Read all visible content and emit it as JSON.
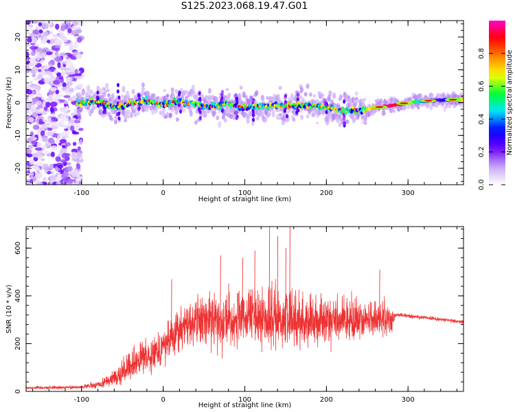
{
  "title": "S125.2023.068.19.47.G01",
  "colors": {
    "snr_line": "#ee3333",
    "axis": "#000000"
  },
  "chart_data": [
    {
      "type": "heatmap",
      "xlabel": "Height of straight line (km)",
      "ylabel": "Frequency (Hz)",
      "xlim": [
        -168,
        368
      ],
      "ylim": [
        -25,
        25
      ],
      "x_ticks": [
        -100,
        0,
        100,
        200,
        300
      ],
      "y_ticks": [
        -20,
        -10,
        0,
        10,
        20
      ],
      "colorbar": {
        "label": "Normalized spectral amplitude",
        "range": [
          0.0,
          1.0
        ],
        "ticks": [
          0.0,
          0.2,
          0.4,
          0.6,
          0.8
        ],
        "tick_labels": [
          "0.0",
          "0.2",
          "0.4",
          "0.6",
          "0.8"
        ],
        "colormap": [
          "#ffffff",
          "#c7a6f7",
          "#6d00ff",
          "#0000ff",
          "#00e5ff",
          "#00ff33",
          "#ffff00",
          "#ff8800",
          "#ff0000",
          "#ff00cc"
        ]
      },
      "ridge_frequency_trace": [
        {
          "x": -105,
          "y": 0.0
        },
        {
          "x": -80,
          "y": 0.5
        },
        {
          "x": -60,
          "y": -1.5
        },
        {
          "x": -40,
          "y": -0.5
        },
        {
          "x": -20,
          "y": 0.5
        },
        {
          "x": 0,
          "y": -0.5
        },
        {
          "x": 20,
          "y": 0.5
        },
        {
          "x": 40,
          "y": -0.5
        },
        {
          "x": 60,
          "y": -1.0
        },
        {
          "x": 80,
          "y": -0.5
        },
        {
          "x": 100,
          "y": -1.5
        },
        {
          "x": 120,
          "y": -1.0
        },
        {
          "x": 140,
          "y": -1.0
        },
        {
          "x": 160,
          "y": -1.0
        },
        {
          "x": 180,
          "y": -1.0
        },
        {
          "x": 200,
          "y": -1.5
        },
        {
          "x": 220,
          "y": -2.5
        },
        {
          "x": 240,
          "y": -2.5
        },
        {
          "x": 260,
          "y": -1.5
        },
        {
          "x": 280,
          "y": -0.8
        },
        {
          "x": 300,
          "y": 0.0
        },
        {
          "x": 320,
          "y": 0.5
        },
        {
          "x": 340,
          "y": 0.8
        },
        {
          "x": 368,
          "y": 1.0
        }
      ]
    },
    {
      "type": "line",
      "xlabel": "Height of straight line (km)",
      "ylabel": "SNR (10 * v/v)",
      "xlim": [
        -168,
        368
      ],
      "ylim": [
        0,
        690
      ],
      "x_ticks": [
        -100,
        0,
        100,
        200,
        300
      ],
      "y_ticks": [
        0,
        200,
        400,
        600
      ],
      "series": [
        {
          "envelope": [
            {
              "x": -168,
              "mean": 15,
              "spread": 10
            },
            {
              "x": -100,
              "mean": 18,
              "spread": 10
            },
            {
              "x": -75,
              "mean": 30,
              "spread": 30
            },
            {
              "x": -50,
              "mean": 80,
              "spread": 80
            },
            {
              "x": -25,
              "mean": 140,
              "spread": 100
            },
            {
              "x": 0,
              "mean": 190,
              "spread": 120
            },
            {
              "x": 20,
              "mean": 260,
              "spread": 140
            },
            {
              "x": 40,
              "mean": 300,
              "spread": 160
            },
            {
              "x": 80,
              "mean": 300,
              "spread": 180
            },
            {
              "x": 130,
              "mean": 310,
              "spread": 200
            },
            {
              "x": 180,
              "mean": 300,
              "spread": 160
            },
            {
              "x": 230,
              "mean": 300,
              "spread": 130
            },
            {
              "x": 280,
              "mean": 300,
              "spread": 100
            },
            {
              "x": 285,
              "mean": 320,
              "spread": 15
            },
            {
              "x": 320,
              "mean": 310,
              "spread": 12
            },
            {
              "x": 368,
              "mean": 290,
              "spread": 12
            }
          ],
          "peak_spikes": [
            {
              "x": 10,
              "y": 470
            },
            {
              "x": 70,
              "y": 570
            },
            {
              "x": 97,
              "y": 560
            },
            {
              "x": 112,
              "y": 590
            },
            {
              "x": 130,
              "y": 690
            },
            {
              "x": 140,
              "y": 650
            },
            {
              "x": 150,
              "y": 600
            },
            {
              "x": 155,
              "y": 690
            },
            {
              "x": 265,
              "y": 510
            }
          ]
        }
      ]
    }
  ]
}
